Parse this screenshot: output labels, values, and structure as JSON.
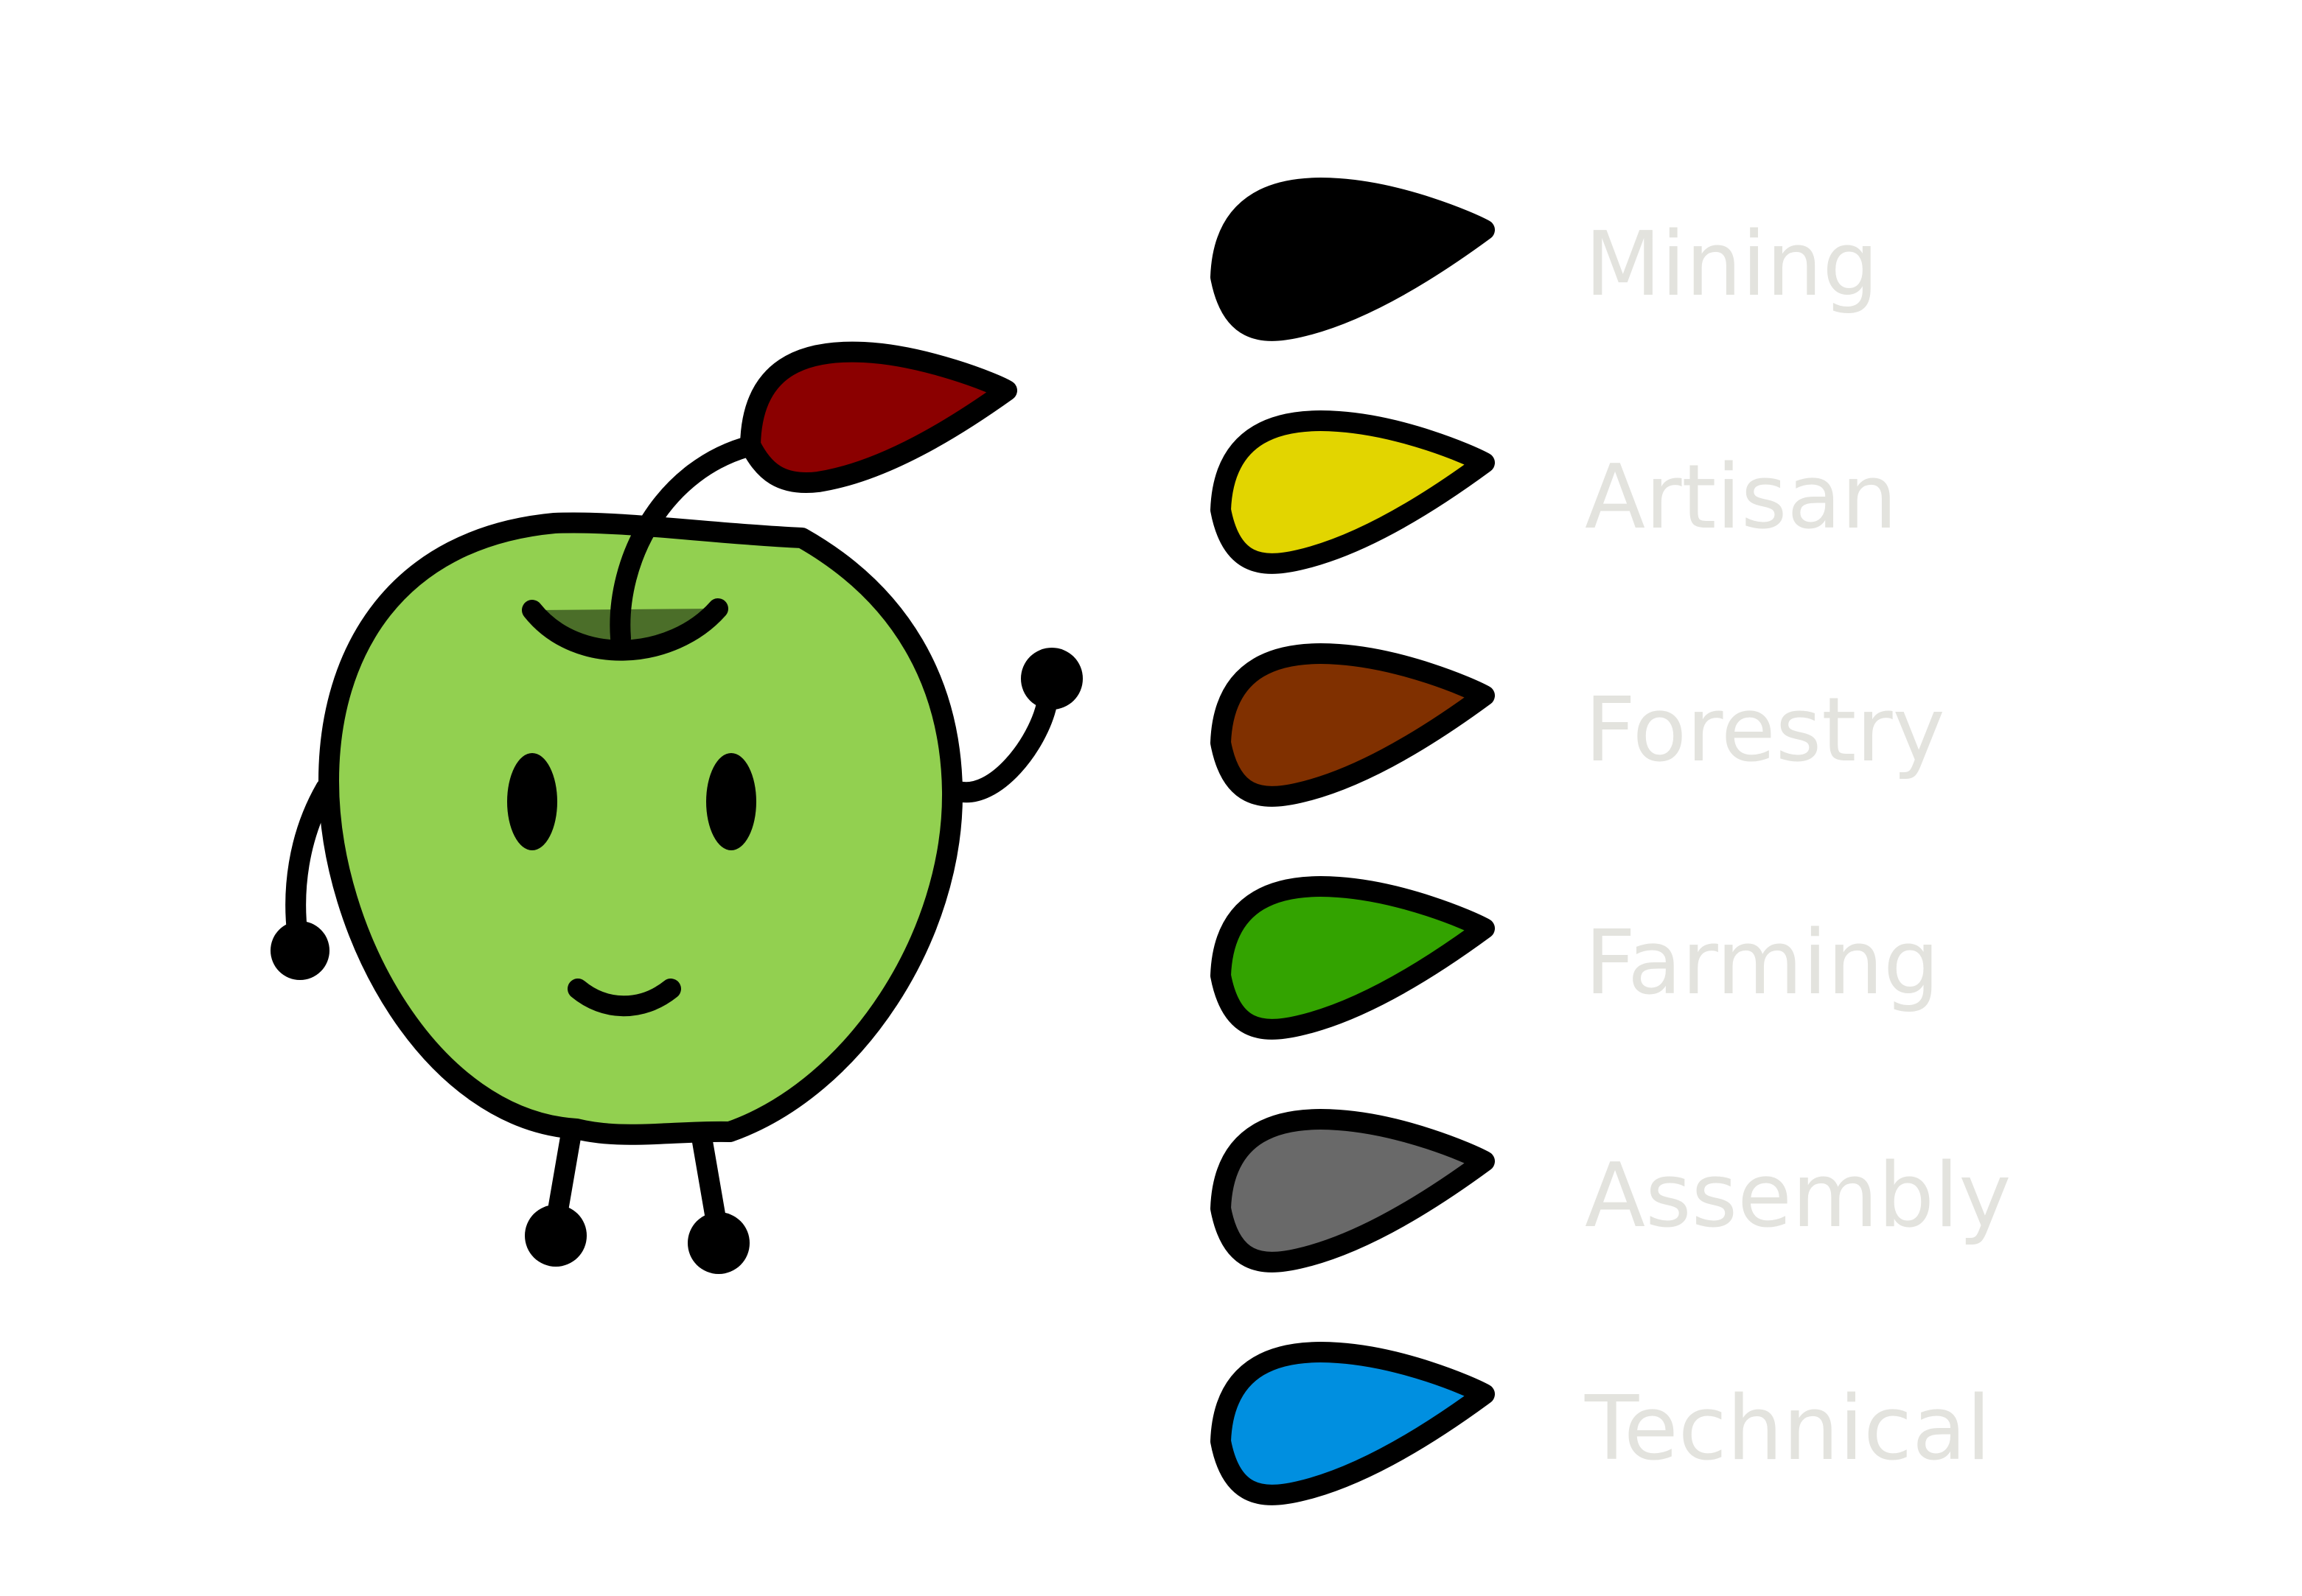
{
  "mascot": {
    "body_color": "#92d050",
    "leaf_color": "#8b0000",
    "inner_shade_color": "#4b6e29",
    "outline_color": "#000000"
  },
  "legend": {
    "label_color": "#e3e3de",
    "items": [
      {
        "label": "Mining",
        "color": "#000000"
      },
      {
        "label": "Artisan",
        "color": "#e2d500"
      },
      {
        "label": "Forestry",
        "color": "#803000"
      },
      {
        "label": "Farming",
        "color": "#33a300"
      },
      {
        "label": "Assembly",
        "color": "#696969"
      },
      {
        "label": "Technical",
        "color": "#008fe0"
      }
    ]
  }
}
